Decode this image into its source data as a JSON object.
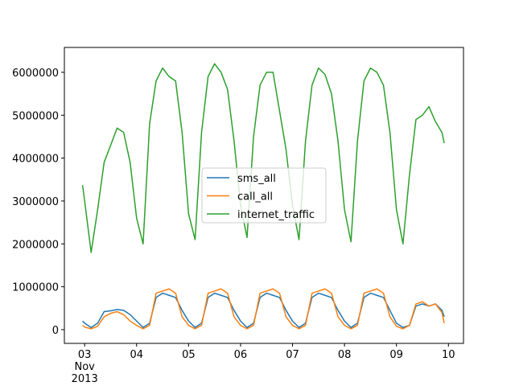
{
  "chart_data": {
    "type": "line",
    "x": [
      2.96,
      3,
      3.125,
      3.25,
      3.375,
      3.5,
      3.625,
      3.75,
      3.875,
      4,
      4.125,
      4.25,
      4.375,
      4.5,
      4.625,
      4.75,
      4.875,
      5,
      5.125,
      5.25,
      5.375,
      5.5,
      5.625,
      5.75,
      5.875,
      6,
      6.125,
      6.25,
      6.375,
      6.5,
      6.625,
      6.75,
      6.875,
      7,
      7.125,
      7.25,
      7.375,
      7.5,
      7.625,
      7.75,
      7.875,
      8,
      8.125,
      8.25,
      8.375,
      8.5,
      8.625,
      8.75,
      8.875,
      9,
      9.125,
      9.25,
      9.375,
      9.5,
      9.625,
      9.75,
      9.875,
      9.92
    ],
    "series": [
      {
        "name": "sms_all",
        "color": "#1f77b4",
        "values": [
          200000,
          150000,
          50000,
          150000,
          420000,
          440000,
          470000,
          450000,
          350000,
          200000,
          50000,
          150000,
          750000,
          850000,
          800000,
          750000,
          450000,
          200000,
          50000,
          150000,
          750000,
          850000,
          800000,
          750000,
          450000,
          200000,
          50000,
          150000,
          750000,
          850000,
          800000,
          750000,
          450000,
          200000,
          50000,
          150000,
          750000,
          850000,
          800000,
          750000,
          450000,
          200000,
          50000,
          150000,
          750000,
          850000,
          800000,
          750000,
          450000,
          150000,
          50000,
          100000,
          550000,
          600000,
          550000,
          600000,
          450000,
          300000
        ]
      },
      {
        "name": "call_all",
        "color": "#ff7f0e",
        "values": [
          100000,
          60000,
          20000,
          80000,
          300000,
          380000,
          420000,
          350000,
          200000,
          100000,
          20000,
          100000,
          850000,
          900000,
          950000,
          850000,
          300000,
          100000,
          20000,
          100000,
          850000,
          900000,
          950000,
          850000,
          300000,
          100000,
          20000,
          100000,
          850000,
          900000,
          950000,
          850000,
          300000,
          100000,
          20000,
          100000,
          850000,
          900000,
          950000,
          850000,
          300000,
          100000,
          20000,
          100000,
          850000,
          900000,
          950000,
          850000,
          300000,
          80000,
          20000,
          100000,
          600000,
          650000,
          550000,
          600000,
          400000,
          150000
        ]
      },
      {
        "name": "internet_traffic",
        "color": "#2ca02c",
        "values": [
          3370000,
          3000000,
          1800000,
          2800000,
          3900000,
          4300000,
          4700000,
          4600000,
          3900000,
          2600000,
          2000000,
          4800000,
          5800000,
          6100000,
          5900000,
          5800000,
          4600000,
          2700000,
          2100000,
          4600000,
          5900000,
          6200000,
          6000000,
          5600000,
          4400000,
          2900000,
          2150000,
          4500000,
          5700000,
          6000000,
          6000000,
          5100000,
          4200000,
          2900000,
          2100000,
          4400000,
          5700000,
          6100000,
          5950000,
          5500000,
          4400000,
          2800000,
          2050000,
          4400000,
          5800000,
          6100000,
          6000000,
          5700000,
          4600000,
          2800000,
          2000000,
          3600000,
          4900000,
          5000000,
          5200000,
          4850000,
          4600000,
          4350000
        ]
      }
    ],
    "xlim": [
      2.61,
      10.29
    ],
    "xticks": [
      {
        "value": 3,
        "label": "03\nNov\n2013"
      },
      {
        "value": 4,
        "label": "04"
      },
      {
        "value": 5,
        "label": "05"
      },
      {
        "value": 6,
        "label": "06"
      },
      {
        "value": 7,
        "label": "07"
      },
      {
        "value": 8,
        "label": "08"
      },
      {
        "value": 9,
        "label": "09"
      },
      {
        "value": 10,
        "label": "10"
      }
    ],
    "ylim": [
      -320000,
      6580000
    ],
    "yticks": [
      0,
      1000000,
      2000000,
      3000000,
      4000000,
      5000000,
      6000000
    ],
    "grid": false,
    "legend": "center"
  }
}
